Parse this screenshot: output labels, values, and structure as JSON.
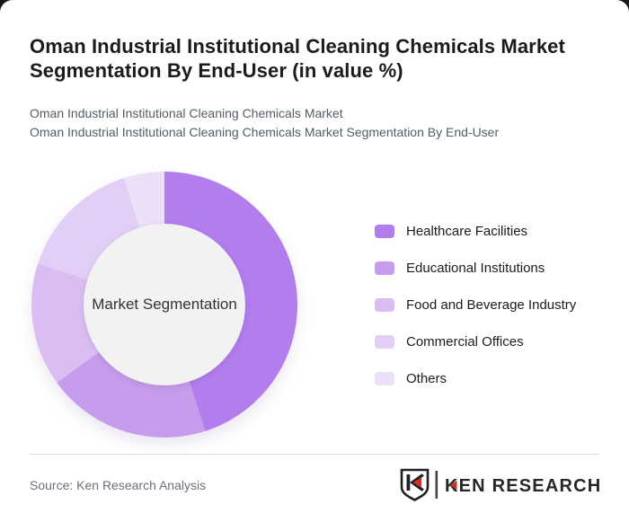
{
  "header": {
    "title": "Oman Industrial Institutional Cleaning Chemicals Market Segmentation By End-User (in value %)",
    "subtitle_line1": "Oman Industrial Institutional Cleaning Chemicals Market",
    "subtitle_line2": "Oman Industrial Institutional Cleaning Chemicals Market Segmentation By End-User"
  },
  "chart_data": {
    "type": "pie",
    "variant": "donut",
    "title": "Oman Industrial Institutional Cleaning Chemicals Market Segmentation By End-User (in value %)",
    "center_label": "Market Segmentation",
    "categories": [
      "Healthcare Facilities",
      "Educational Institutions",
      "Food and Beverage Industry",
      "Commercial Offices",
      "Others"
    ],
    "values": [
      45,
      20,
      15,
      15,
      5
    ],
    "unit": "%",
    "colors": [
      "#b37ded",
      "#c69ded",
      "#dabef3",
      "#e3cff6",
      "#ecdff8"
    ],
    "legend_position": "right",
    "start_angle_deg": 0,
    "direction": "clockwise",
    "center_circle_color": "#f2f2f2"
  },
  "footer": {
    "source": "Source: Ken Research Analysis",
    "logo_text": "KEN RESEARCH"
  },
  "colors": {
    "accent_red": "#c8342c",
    "logo_dark": "#1f2023",
    "card_bg": "#ffffff",
    "page_bg": "#191919"
  }
}
